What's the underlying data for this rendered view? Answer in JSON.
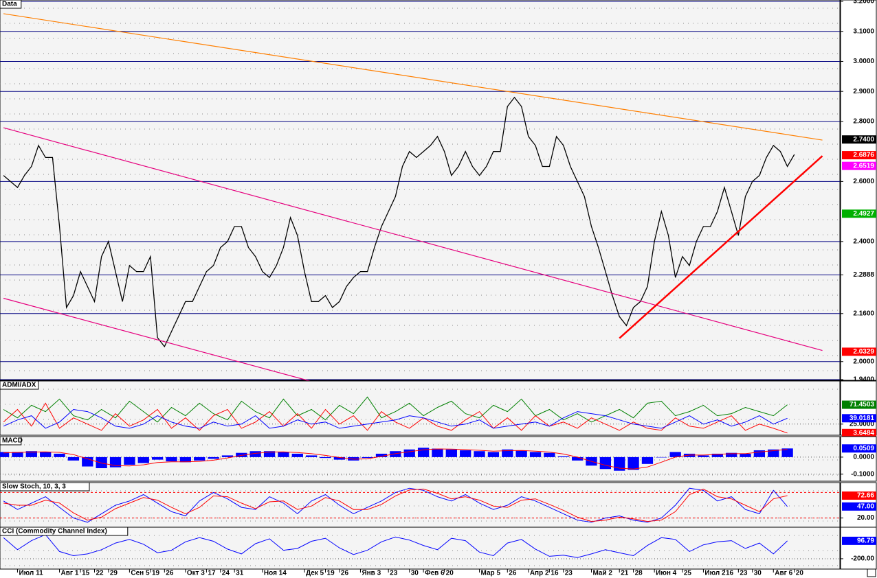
{
  "chart_data": [
    {
      "type": "line",
      "title": "Data",
      "categories": [
        null,
        null,
        "Июл 11",
        null,
        null,
        null,
        null,
        null,
        "Авг 1",
        null,
        null,
        "15",
        null,
        "22",
        null,
        "29",
        null,
        null,
        "Сен 5",
        null,
        null,
        "19",
        null,
        "26",
        null,
        null,
        "Окт 3",
        null,
        null,
        "17",
        null,
        "24",
        null,
        "31",
        null,
        null,
        null,
        "Ноя 14",
        null,
        null,
        null,
        null,
        null,
        "Дек 5",
        null,
        null,
        "19",
        null,
        "26",
        null,
        null,
        "Янв 3",
        null,
        null,
        null,
        "23",
        null,
        null,
        "30",
        null,
        "Фев 6",
        null,
        null,
        "20",
        null,
        null,
        null,
        null,
        "Мар 5",
        null,
        null,
        null,
        "26",
        null,
        null,
        "Апр 2",
        null,
        null,
        "16",
        null,
        "23",
        null,
        null,
        null,
        "Май 2",
        null,
        null,
        null,
        "21",
        null,
        "28",
        null,
        null,
        "Июн 4",
        null,
        null,
        null,
        "25",
        null,
        null,
        "Июл 2",
        null,
        null,
        "16",
        null,
        "23",
        null,
        "30",
        null,
        null,
        "Авг 6",
        null,
        null,
        "20",
        null,
        null,
        null,
        null,
        null,
        null
      ],
      "series": [
        {
          "color": "#000000",
          "values": [
            2.62,
            2.6,
            2.58,
            2.62,
            2.65,
            2.72,
            2.68,
            2.68,
            2.45,
            2.18,
            2.22,
            2.3,
            2.25,
            2.2,
            2.35,
            2.4,
            2.3,
            2.2,
            2.32,
            2.3,
            2.3,
            2.35,
            2.08,
            2.05,
            2.1,
            2.15,
            2.2,
            2.2,
            2.25,
            2.3,
            2.32,
            2.38,
            2.4,
            2.45,
            2.45,
            2.38,
            2.35,
            2.3,
            2.28,
            2.32,
            2.38,
            2.48,
            2.42,
            2.3,
            2.2,
            2.2,
            2.22,
            2.18,
            2.2,
            2.25,
            2.28,
            2.3,
            2.3,
            2.38,
            2.45,
            2.5,
            2.55,
            2.65,
            2.7,
            2.68,
            2.7,
            2.72,
            2.75,
            2.7,
            2.62,
            2.65,
            2.7,
            2.65,
            2.62,
            2.65,
            2.7,
            2.7,
            2.85,
            2.88,
            2.85,
            2.75,
            2.72,
            2.65,
            2.65,
            2.75,
            2.72,
            2.65,
            2.6,
            2.55,
            2.45,
            2.38,
            2.3,
            2.22,
            2.15,
            2.12,
            2.18,
            2.2,
            2.25,
            2.4,
            2.5,
            2.42,
            2.28,
            2.35,
            2.32,
            2.4,
            2.45,
            2.45,
            2.5,
            2.58,
            2.5,
            2.42,
            2.55,
            2.6,
            2.62,
            2.68,
            2.72,
            2.7,
            2.65,
            2.69,
            null,
            null,
            null,
            null,
            null,
            null
          ]
        }
      ],
      "trendlines": [
        {
          "color": "#ff7f00",
          "x": [
            0,
            117
          ],
          "y": [
            3.159,
            2.738
          ]
        },
        {
          "color": "#e6007e",
          "x": [
            0,
            117
          ],
          "y": [
            2.779,
            2.037
          ]
        },
        {
          "color": "#e6007e",
          "x": [
            0,
            44
          ],
          "y": [
            2.211,
            1.934
          ]
        },
        {
          "color": "#ff0000",
          "x": [
            88,
            117
          ],
          "y": [
            2.078,
            2.685
          ]
        }
      ],
      "ylim": [
        1.94,
        3.2
      ],
      "yticks": [
        {
          "value": 3.2,
          "label": "3.2000"
        },
        {
          "value": 3.1,
          "label": "3.1000"
        },
        {
          "value": 3.0,
          "label": "3.0000"
        },
        {
          "value": 2.9,
          "label": "2.9000"
        },
        {
          "value": 2.8,
          "label": "2.8000"
        },
        {
          "value": 2.6,
          "label": "2.6000"
        },
        {
          "value": 2.4,
          "label": "2.4000"
        },
        {
          "value": 2.2888,
          "label": "2.2888"
        },
        {
          "value": 2.16,
          "label": "2.1600"
        },
        {
          "value": 2.0,
          "label": "2.0000"
        },
        {
          "value": 1.94,
          "label": "1.9400"
        }
      ],
      "price_labels": [
        {
          "value": 2.74,
          "label": "2.7400",
          "color": "#000000"
        },
        {
          "value": 2.6876,
          "label": "2.6876",
          "color": "#ff0000"
        },
        {
          "value": 2.6519,
          "label": "2.6519",
          "color": "#ff00ff"
        },
        {
          "value": 2.4927,
          "label": "2.4927",
          "color": "#00b000"
        },
        {
          "value": 2.0329,
          "label": "2.0329",
          "color": "#ff0000"
        }
      ]
    },
    {
      "type": "line",
      "title": "ADMI/ADX",
      "ylim": [
        0,
        125
      ],
      "yticks": [
        {
          "value": 25,
          "label": "25.0000"
        }
      ],
      "series": [
        {
          "color": "#008000",
          "last_label": "71.4503",
          "values": [
            60,
            40,
            70,
            55,
            85,
            45,
            35,
            60,
            40,
            80,
            55,
            30,
            65,
            45,
            75,
            50,
            35,
            80,
            55,
            40,
            85,
            45,
            60,
            35,
            70,
            50,
            90,
            40,
            55,
            75,
            45,
            65,
            80,
            50,
            40,
            70,
            55,
            85,
            45,
            60,
            35,
            50,
            30,
            45,
            60,
            40,
            75,
            80,
            45,
            55,
            70,
            45,
            50,
            65,
            55,
            45,
            71.4503
          ]
        },
        {
          "color": "#ff0000",
          "last_label": "3.6484",
          "values": [
            30,
            60,
            20,
            75,
            15,
            40,
            25,
            10,
            50,
            20,
            35,
            60,
            15,
            40,
            10,
            45,
            60,
            15,
            30,
            55,
            20,
            50,
            15,
            60,
            25,
            45,
            10,
            55,
            30,
            15,
            40,
            20,
            10,
            35,
            55,
            15,
            40,
            10,
            45,
            20,
            30,
            15,
            40,
            25,
            10,
            30,
            15,
            10,
            40,
            20,
            15,
            30,
            45,
            10,
            25,
            15,
            3.6484
          ]
        },
        {
          "color": "#0000ff",
          "last_label": "39.0181",
          "values": [
            20,
            35,
            45,
            15,
            30,
            60,
            55,
            40,
            20,
            15,
            25,
            45,
            30,
            20,
            15,
            30,
            20,
            25,
            45,
            15,
            20,
            35,
            25,
            30,
            15,
            20,
            25,
            30,
            35,
            45,
            40,
            30,
            20,
            25,
            35,
            15,
            20,
            25,
            30,
            20,
            40,
            55,
            50,
            45,
            35,
            25,
            20,
            15,
            30,
            45,
            25,
            35,
            20,
            30,
            45,
            25,
            39.0181
          ]
        }
      ]
    },
    {
      "type": "bar",
      "title": "MACD",
      "ylim": [
        -0.1375,
        0.1125
      ],
      "yticks": [
        {
          "value": 0,
          "label": "0.0000"
        },
        {
          "value": -0.1,
          "label": "-0.1000"
        }
      ],
      "series": [
        {
          "type": "bar",
          "color": "#0000ff",
          "last_label": "0.0509",
          "values": [
            0.03,
            0.03,
            0.035,
            0.03,
            0.02,
            -0.02,
            -0.055,
            -0.065,
            -0.06,
            -0.045,
            -0.035,
            -0.015,
            -0.025,
            -0.03,
            -0.02,
            -0.01,
            0.01,
            0.025,
            0.035,
            0.035,
            0.03,
            0.02,
            0.01,
            -0.005,
            -0.015,
            -0.02,
            -0.005,
            0.02,
            0.035,
            0.045,
            0.055,
            0.05,
            0.045,
            0.04,
            0.035,
            0.03,
            0.045,
            0.04,
            0.03,
            0.025,
            0.005,
            -0.02,
            -0.05,
            -0.07,
            -0.08,
            -0.075,
            -0.04,
            0.0,
            0.03,
            0.02,
            0.01,
            0.02,
            0.025,
            0.02,
            0.04,
            0.045,
            0.0509
          ]
        },
        {
          "type": "line",
          "color": "#ff0000",
          "values": [
            0.025,
            0.028,
            0.03,
            0.031,
            0.028,
            0.015,
            -0.01,
            -0.035,
            -0.05,
            -0.052,
            -0.045,
            -0.032,
            -0.028,
            -0.028,
            -0.025,
            -0.018,
            -0.005,
            0.01,
            0.022,
            0.03,
            0.031,
            0.027,
            0.02,
            0.01,
            -0.002,
            -0.012,
            -0.01,
            0.005,
            0.02,
            0.032,
            0.043,
            0.048,
            0.047,
            0.044,
            0.04,
            0.035,
            0.038,
            0.039,
            0.035,
            0.03,
            0.018,
            0.0,
            -0.025,
            -0.048,
            -0.065,
            -0.07,
            -0.058,
            -0.03,
            0.0,
            0.012,
            0.012,
            0.016,
            0.02,
            0.02,
            0.03,
            0.038,
            0.045
          ]
        }
      ]
    },
    {
      "type": "line",
      "title": "Slow Stoch, 10, 3, 3",
      "ylim": [
        0,
        100
      ],
      "yticks": [
        {
          "value": 20,
          "label": "20.00"
        }
      ],
      "levels": [
        80,
        20
      ],
      "series": [
        {
          "color": "#0000ff",
          "last_label": "47.00",
          "values": [
            60,
            40,
            55,
            70,
            45,
            20,
            10,
            30,
            50,
            60,
            75,
            55,
            35,
            25,
            60,
            80,
            65,
            45,
            40,
            70,
            55,
            30,
            60,
            75,
            50,
            30,
            45,
            60,
            80,
            90,
            85,
            70,
            60,
            75,
            55,
            40,
            50,
            70,
            60,
            45,
            30,
            15,
            10,
            20,
            25,
            15,
            10,
            20,
            50,
            90,
            85,
            60,
            70,
            40,
            30,
            85,
            47
          ]
        },
        {
          "color": "#ff0000",
          "last_label": "72.66",
          "values": [
            55,
            50,
            50,
            62,
            55,
            32,
            15,
            22,
            42,
            55,
            68,
            62,
            45,
            30,
            45,
            72,
            70,
            55,
            42,
            58,
            60,
            40,
            48,
            68,
            60,
            40,
            40,
            52,
            72,
            86,
            88,
            78,
            65,
            70,
            62,
            48,
            45,
            62,
            65,
            52,
            38,
            22,
            12,
            15,
            22,
            18,
            12,
            15,
            35,
            75,
            88,
            70,
            65,
            50,
            35,
            65,
            72.66
          ]
        }
      ]
    },
    {
      "type": "line",
      "title": "CCI (Commodity Channel Index)",
      "ylim": [
        -360,
        300
      ],
      "yticks": [
        {
          "value": -200,
          "label": "-200.00"
        }
      ],
      "series": [
        {
          "color": "#0000ff",
          "last_label": "96.79",
          "values": [
            150,
            -50,
            100,
            200,
            -80,
            -150,
            -120,
            -50,
            60,
            120,
            40,
            -100,
            -60,
            80,
            150,
            90,
            -40,
            -120,
            50,
            130,
            -60,
            -30,
            90,
            140,
            -20,
            -130,
            -60,
            80,
            160,
            110,
            20,
            -50,
            140,
            100,
            -90,
            -150,
            60,
            120,
            -40,
            -160,
            -140,
            -180,
            -120,
            -50,
            -100,
            -150,
            20,
            150,
            120,
            -80,
            30,
            80,
            100,
            -30,
            60,
            -120,
            96.79
          ]
        }
      ]
    }
  ]
}
